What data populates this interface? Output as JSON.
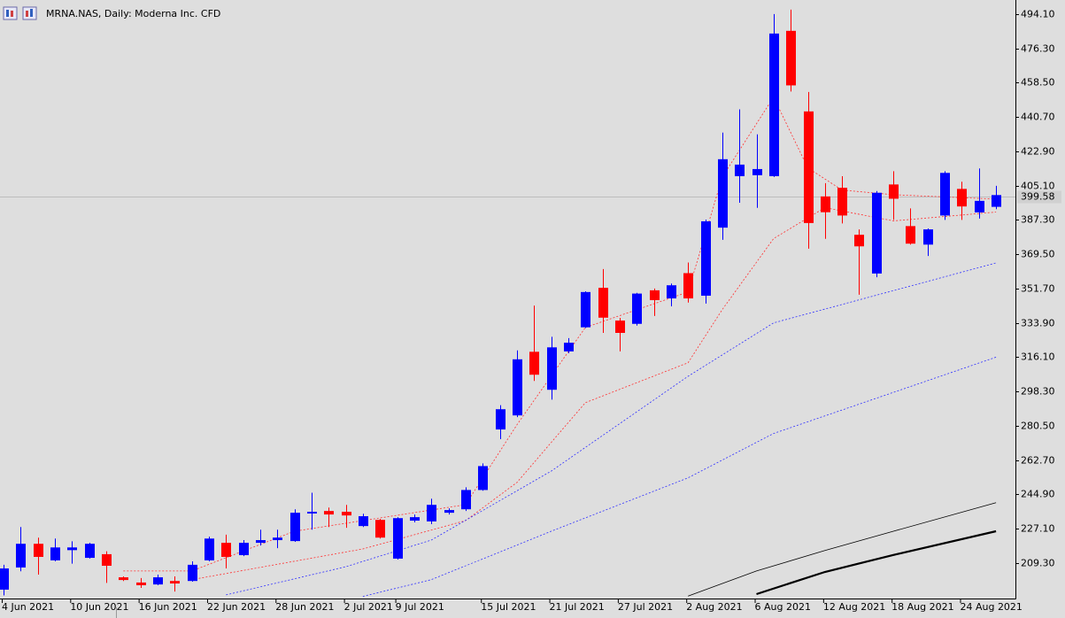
{
  "chart_data": {
    "type": "candlestick",
    "title": "MRNA.NAS, Daily:  Moderna Inc. CFD",
    "categories": [
      "4 Jun 2021",
      null,
      null,
      null,
      "10 Jun 2021",
      null,
      null,
      null,
      "16 Jun 2021",
      null,
      null,
      null,
      "22 Jun 2021",
      null,
      null,
      null,
      "28 Jun 2021",
      null,
      null,
      null,
      "2 Jul 2021",
      null,
      null,
      "9 Jul 2021",
      null,
      null,
      null,
      null,
      "15 Jul 2021",
      null,
      null,
      null,
      "21 Jul 2021",
      null,
      null,
      null,
      "27 Jul 2021",
      null,
      null,
      null,
      "2 Aug 2021",
      null,
      null,
      null,
      "6 Aug 2021",
      null,
      null,
      null,
      "12 Aug 2021",
      null,
      null,
      null,
      "18 Aug 2021",
      null,
      null,
      null,
      "24 Aug 2021",
      null,
      null
    ],
    "open": [
      195.5,
      207,
      219.3,
      210.7,
      216,
      212,
      213.9,
      201.9,
      199.2,
      198.2,
      200,
      200,
      210.7,
      219.8,
      213.4,
      219.8,
      221.2,
      220.7,
      235,
      236.3,
      235.9,
      228.5,
      231.7,
      211.6,
      231.3,
      230.9,
      235.4,
      237.2,
      247.2,
      278.6,
      285.9,
      318.9,
      299.2,
      319.1,
      331.6,
      352.1,
      335.1,
      333.4,
      350.8,
      346.6,
      359.7,
      348,
      383.3,
      410,
      410.5,
      410,
      485.4,
      443.6,
      399.5,
      404,
      379.6,
      359.5,
      405.7,
      384.1,
      374.5,
      389.6,
      403.4,
      391.2,
      394.1
    ],
    "high": [
      208.4,
      228,
      222.5,
      222,
      220.6,
      219.8,
      215.4,
      202.4,
      201.5,
      203.3,
      202.4,
      210.2,
      223,
      224,
      221.2,
      226.6,
      226.6,
      237.2,
      245.8,
      238.1,
      239.5,
      234.9,
      232.2,
      233.1,
      234.5,
      242.7,
      237.7,
      248.6,
      261,
      291.2,
      319.6,
      342.9,
      326.7,
      326,
      350.3,
      361.8,
      336.5,
      349.5,
      351.7,
      354.3,
      365.2,
      387.5,
      432.6,
      444.7,
      431.7,
      494.1,
      496.4,
      453.7,
      406.4,
      410,
      382.4,
      402.3,
      412.6,
      393.3,
      382.9,
      412.6,
      407.1,
      414,
      405
    ],
    "low": [
      192.5,
      205,
      203.3,
      210.2,
      209,
      211.6,
      199,
      200,
      196.4,
      197.8,
      194.5,
      199.6,
      210.2,
      206.5,
      212.9,
      218.4,
      217,
      220.3,
      226.6,
      228,
      227.6,
      228,
      222,
      211.1,
      230.4,
      229.5,
      234.5,
      236.3,
      246.8,
      273.6,
      285,
      303.8,
      294.1,
      318.2,
      331.2,
      328.7,
      319.1,
      332.5,
      337.5,
      342.5,
      344.4,
      343.9,
      377,
      396.2,
      393.6,
      409.6,
      453.9,
      372.4,
      377.5,
      385.5,
      348.5,
      357.6,
      387.3,
      374.5,
      368.6,
      387.3,
      387.3,
      388,
      392.9
    ],
    "close": [
      206.5,
      219.3,
      212.5,
      217.4,
      217.4,
      219.3,
      207.9,
      200.5,
      197.8,
      201.9,
      198.7,
      208.4,
      222,
      212.5,
      219.8,
      221.2,
      222.5,
      235.4,
      235.9,
      234.5,
      234,
      233.6,
      222.5,
      232.6,
      233.1,
      239.5,
      236.8,
      247.2,
      259.6,
      289.1,
      315,
      307,
      321.2,
      323.6,
      349.9,
      336.6,
      328.7,
      349.1,
      345.7,
      353.4,
      346.6,
      386.6,
      418.8,
      416,
      413.7,
      484,
      457.1,
      385.7,
      391.3,
      389.6,
      373.6,
      401.4,
      398.3,
      375,
      382.4,
      411.7,
      394.3,
      397.2,
      400.2
    ],
    "up_color": "#0000ff",
    "down_color": "#ff0000",
    "lines": [
      {
        "color": "#ff3030",
        "dash": true,
        "width": 0.8,
        "x": [
          7,
          11,
          17,
          27,
          30,
          34,
          40,
          42,
          45,
          47,
          49,
          52,
          58
        ],
        "values": [
          205.2,
          205.2,
          225.8,
          239.6,
          281,
          331.5,
          349.9,
          409.6,
          451,
          414.3,
          402.8,
          400.4,
          398.1
        ]
      },
      {
        "color": "#ff3030",
        "dash": true,
        "width": 0.8,
        "x": [
          11,
          21,
          27,
          30,
          34,
          40,
          42,
          45,
          48,
          52,
          58
        ],
        "values": [
          200.7,
          216.6,
          231.3,
          251.1,
          292.5,
          313.2,
          340.8,
          377.6,
          393.7,
          386.8,
          391.4
        ]
      },
      {
        "color": "#3030ff",
        "dash": true,
        "width": 0.8,
        "x": [
          13,
          20,
          25,
          32,
          40,
          45,
          58
        ],
        "values": [
          192.8,
          207.4,
          221.2,
          257,
          306.2,
          333.9,
          365
        ]
      },
      {
        "color": "#3030ff",
        "dash": true,
        "width": 0.8,
        "x": [
          21,
          25,
          32,
          40,
          45,
          58
        ],
        "values": [
          192,
          200.7,
          225.8,
          253.5,
          276.5,
          316.1
        ]
      },
      {
        "color": "#000000",
        "dash": false,
        "width": 0.8,
        "x": [
          40,
          44,
          48,
          52,
          58
        ],
        "values": [
          192.2,
          205.2,
          215.8,
          225.8,
          240.6
        ]
      },
      {
        "color": "#000000",
        "dash": false,
        "width": 2.2,
        "x": [
          44,
          48,
          52,
          58
        ],
        "values": [
          193.2,
          204.7,
          213.5,
          225.8
        ]
      }
    ],
    "current_price": {
      "value": 399.58,
      "label": "399.58"
    },
    "ylim": [
      190.9,
      501.4
    ],
    "yticks": [
      {
        "value": 209.3,
        "label": "209.30"
      },
      {
        "value": 227.1,
        "label": "227.10"
      },
      {
        "value": 244.9,
        "label": "244.90"
      },
      {
        "value": 262.7,
        "label": "262.70"
      },
      {
        "value": 280.5,
        "label": "280.50"
      },
      {
        "value": 298.3,
        "label": "298.30"
      },
      {
        "value": 316.1,
        "label": "316.10"
      },
      {
        "value": 333.9,
        "label": "333.90"
      },
      {
        "value": 351.7,
        "label": "351.70"
      },
      {
        "value": 369.5,
        "label": "369.50"
      },
      {
        "value": 387.3,
        "label": "387.30"
      },
      {
        "value": 405.1,
        "label": "405.10"
      },
      {
        "value": 422.9,
        "label": "422.90"
      },
      {
        "value": 440.7,
        "label": "440.70"
      },
      {
        "value": 458.5,
        "label": "458.50"
      },
      {
        "value": 476.3,
        "label": "476.30"
      },
      {
        "value": 494.1,
        "label": "494.10"
      }
    ]
  }
}
